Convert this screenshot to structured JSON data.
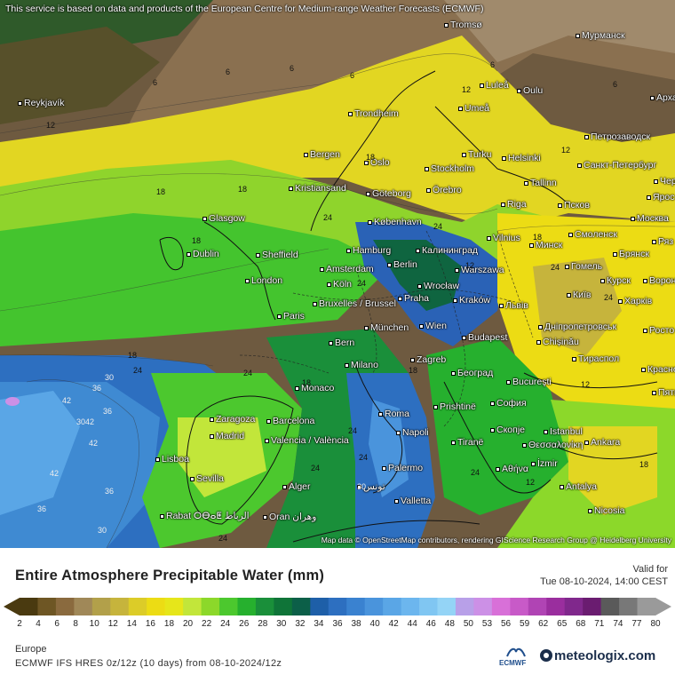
{
  "map": {
    "notice": "This service is based on data and products of the European Centre for Medium-range Weather Forecasts (ECMWF)",
    "attribution": "Map data © OpenStreetMap contributors, rendering GIScience Research Group @ Heidelberg University",
    "cities": [
      {
        "name": "Tromsø"
      },
      {
        "name": "Мурманск"
      },
      {
        "name": "Reykjavík"
      },
      {
        "name": "Luleå"
      },
      {
        "name": "Oulu"
      },
      {
        "name": "Umeå"
      },
      {
        "name": "Арха"
      },
      {
        "name": "Trondheim"
      },
      {
        "name": "Петрозаводск"
      },
      {
        "name": "Bergen"
      },
      {
        "name": "Oslo"
      },
      {
        "name": "Turku"
      },
      {
        "name": "Helsinki"
      },
      {
        "name": "Санкт-Петербург"
      },
      {
        "name": "Stockholm"
      },
      {
        "name": "Kristiansand"
      },
      {
        "name": "Göteborg"
      },
      {
        "name": "Örebro"
      },
      {
        "name": "Tallinn"
      },
      {
        "name": "Чер"
      },
      {
        "name": "Ярос"
      },
      {
        "name": "Псков"
      },
      {
        "name": "Riga"
      },
      {
        "name": "Glasgow"
      },
      {
        "name": "København"
      },
      {
        "name": "Москва"
      },
      {
        "name": "Vilnius"
      },
      {
        "name": "Смоленск"
      },
      {
        "name": "Ряз"
      },
      {
        "name": "Минск"
      },
      {
        "name": "Hamburg"
      },
      {
        "name": "Калининград"
      },
      {
        "name": "Dublin"
      },
      {
        "name": "Sheffield"
      },
      {
        "name": "Брянск"
      },
      {
        "name": "Amsterdam"
      },
      {
        "name": "Berlin"
      },
      {
        "name": "Гомель"
      },
      {
        "name": "Warszawa"
      },
      {
        "name": "London"
      },
      {
        "name": "Köln"
      },
      {
        "name": "Курск"
      },
      {
        "name": "Ворон"
      },
      {
        "name": "Wrocław"
      },
      {
        "name": "Київ"
      },
      {
        "name": "Bruxelles / Brussel"
      },
      {
        "name": "Praha"
      },
      {
        "name": "Kraków"
      },
      {
        "name": "Львів"
      },
      {
        "name": "Харків"
      },
      {
        "name": "Paris"
      },
      {
        "name": "Дніпропетровськ"
      },
      {
        "name": "München"
      },
      {
        "name": "Wien"
      },
      {
        "name": "Росто"
      },
      {
        "name": "Budapest"
      },
      {
        "name": "Chișinău"
      },
      {
        "name": "Bern"
      },
      {
        "name": "Тираспол"
      },
      {
        "name": "Zagreb"
      },
      {
        "name": "Красно"
      },
      {
        "name": "Milano"
      },
      {
        "name": "Београд"
      },
      {
        "name": "Bucureşti"
      },
      {
        "name": "Пять"
      },
      {
        "name": "Monaco"
      },
      {
        "name": "Roma"
      },
      {
        "name": "Prishtinë"
      },
      {
        "name": "София"
      },
      {
        "name": "Zaragoza"
      },
      {
        "name": "Barcelona"
      },
      {
        "name": "Istanbul"
      },
      {
        "name": "Madrid"
      },
      {
        "name": "Napoli"
      },
      {
        "name": "Скопје"
      },
      {
        "name": "Θεσσαλονίκη"
      },
      {
        "name": "Ankara"
      },
      {
        "name": "Tiranë"
      },
      {
        "name": "Valencia / València"
      },
      {
        "name": "Lisboa"
      },
      {
        "name": "İzmir"
      },
      {
        "name": "Αθήνα"
      },
      {
        "name": "Palermo"
      },
      {
        "name": "Sevilla"
      },
      {
        "name": "Alger"
      },
      {
        "name": "تونس"
      },
      {
        "name": "Antalya"
      },
      {
        "name": "Valletta"
      },
      {
        "name": "Nicosia"
      },
      {
        "name": "Rabat ⵔⴱⴰⵟ الرباط"
      },
      {
        "name": "Oran وهران"
      }
    ],
    "isoline_values": [
      "6",
      "6",
      "6",
      "6",
      "6",
      "6",
      "12",
      "12",
      "12",
      "12",
      "12",
      "12",
      "18",
      "18",
      "18",
      "18",
      "18",
      "18",
      "18",
      "18",
      "18",
      "24",
      "24",
      "24",
      "24",
      "24",
      "24",
      "24",
      "24",
      "24",
      "24",
      "24",
      "24",
      "30",
      "30",
      "30",
      "30",
      "36",
      "36",
      "36",
      "36",
      "42",
      "42",
      "42",
      "42"
    ]
  },
  "legend": {
    "title": "Entire Atmosphere Precipitable Water (mm)",
    "valid_label": "Valid for",
    "valid_time": "Tue 08-10-2024, 14:00 CEST",
    "ticks": [
      "2",
      "4",
      "6",
      "8",
      "10",
      "12",
      "14",
      "16",
      "18",
      "20",
      "22",
      "24",
      "26",
      "28",
      "30",
      "32",
      "34",
      "36",
      "38",
      "40",
      "42",
      "44",
      "46",
      "48",
      "50",
      "53",
      "56",
      "59",
      "62",
      "65",
      "68",
      "71",
      "74",
      "77",
      "80"
    ],
    "colors": [
      "#4a3a10",
      "#6e5624",
      "#8a6a3e",
      "#a08858",
      "#b2a04a",
      "#c6b43c",
      "#dccc28",
      "#ecdc14",
      "#e6e61a",
      "#c2e63a",
      "#8cd82a",
      "#4cc82e",
      "#26b02e",
      "#1a8f3a",
      "#0f7438",
      "#0c5f48",
      "#1e5fa8",
      "#2d6fc0",
      "#3a82d0",
      "#4a94dc",
      "#5aa6e6",
      "#6cb6ee",
      "#80c6f2",
      "#94d4f6",
      "#b8a0e8",
      "#cc90e6",
      "#d870d8",
      "#c85ac8",
      "#b044b4",
      "#9a2e9e",
      "#80288c",
      "#6a1c70",
      "#5a5a5a",
      "#787878",
      "#9a9a9a"
    ],
    "region": "Europe",
    "model_line": "ECMWF IFS HRES 0z/12z (10 days) from 08-10-2024/12z",
    "ecmwf_logo_text": "ECMWF",
    "brand": "meteologix.com"
  }
}
